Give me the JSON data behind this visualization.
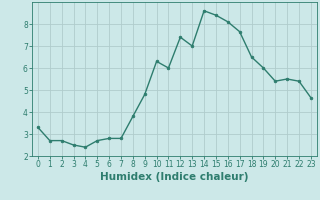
{
  "x": [
    0,
    1,
    2,
    3,
    4,
    5,
    6,
    7,
    8,
    9,
    10,
    11,
    12,
    13,
    14,
    15,
    16,
    17,
    18,
    19,
    20,
    21,
    22,
    23
  ],
  "y": [
    3.3,
    2.7,
    2.7,
    2.5,
    2.4,
    2.7,
    2.8,
    2.8,
    3.8,
    4.8,
    6.3,
    6.0,
    7.4,
    7.0,
    8.6,
    8.4,
    8.1,
    7.65,
    6.5,
    6.0,
    5.4,
    5.5,
    5.4,
    4.65
  ],
  "line_color": "#2e7d6e",
  "marker": "o",
  "marker_size": 2.0,
  "linewidth": 1.0,
  "bg_color": "#cce8e8",
  "grid_color": "#b0cccc",
  "xlabel": "Humidex (Indice chaleur)",
  "xlabel_fontsize": 7.5,
  "ylim": [
    2,
    9
  ],
  "xlim": [
    -0.5,
    23.5
  ],
  "yticks": [
    2,
    3,
    4,
    5,
    6,
    7,
    8
  ],
  "xticks": [
    0,
    1,
    2,
    3,
    4,
    5,
    6,
    7,
    8,
    9,
    10,
    11,
    12,
    13,
    14,
    15,
    16,
    17,
    18,
    19,
    20,
    21,
    22,
    23
  ],
  "tick_fontsize": 5.5
}
